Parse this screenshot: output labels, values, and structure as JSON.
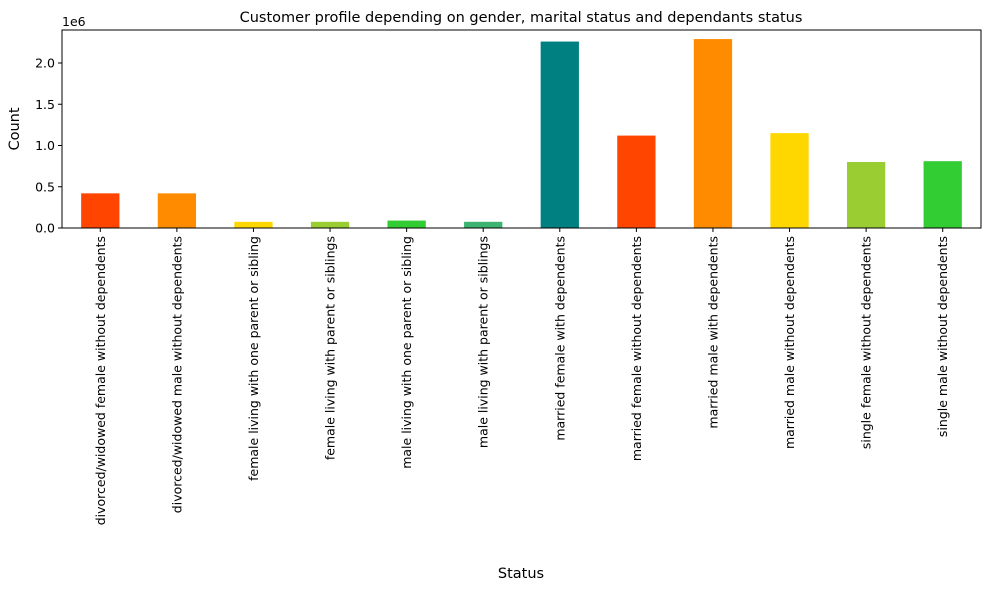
{
  "chart_data": {
    "type": "bar",
    "title": "Customer profile depending on gender, marital status and dependants status",
    "xlabel": "Status",
    "ylabel": "Count",
    "offset_label": "1e6",
    "ylim": [
      0,
      2.4
    ],
    "y_ticks": [
      0.0,
      0.5,
      1.0,
      1.5,
      2.0
    ],
    "y_tick_labels": [
      "0.0",
      "0.5",
      "1.0",
      "1.5",
      "2.0"
    ],
    "categories": [
      "divorced/widowed female without dependents",
      "divorced/widowed male without dependents",
      "female living with one parent or sibling",
      "female living with parent or siblings",
      "male living with one parent or sibling",
      "male living with parent or siblings",
      "married female with dependents",
      "married female without dependents",
      "married male with dependents",
      "married male without dependents",
      "single female without dependents",
      "single male without dependents"
    ],
    "values": [
      0.42,
      0.42,
      0.075,
      0.075,
      0.09,
      0.075,
      2.26,
      1.12,
      2.29,
      1.15,
      0.8,
      0.81
    ],
    "colors": [
      "#ff4500",
      "#ff8c00",
      "#ffd700",
      "#9acd32",
      "#32cd32",
      "#3cb371",
      "#008080",
      "#ff4500",
      "#ff8c00",
      "#ffd700",
      "#9acd32",
      "#32cd32"
    ],
    "grid": false,
    "legend": "none"
  }
}
